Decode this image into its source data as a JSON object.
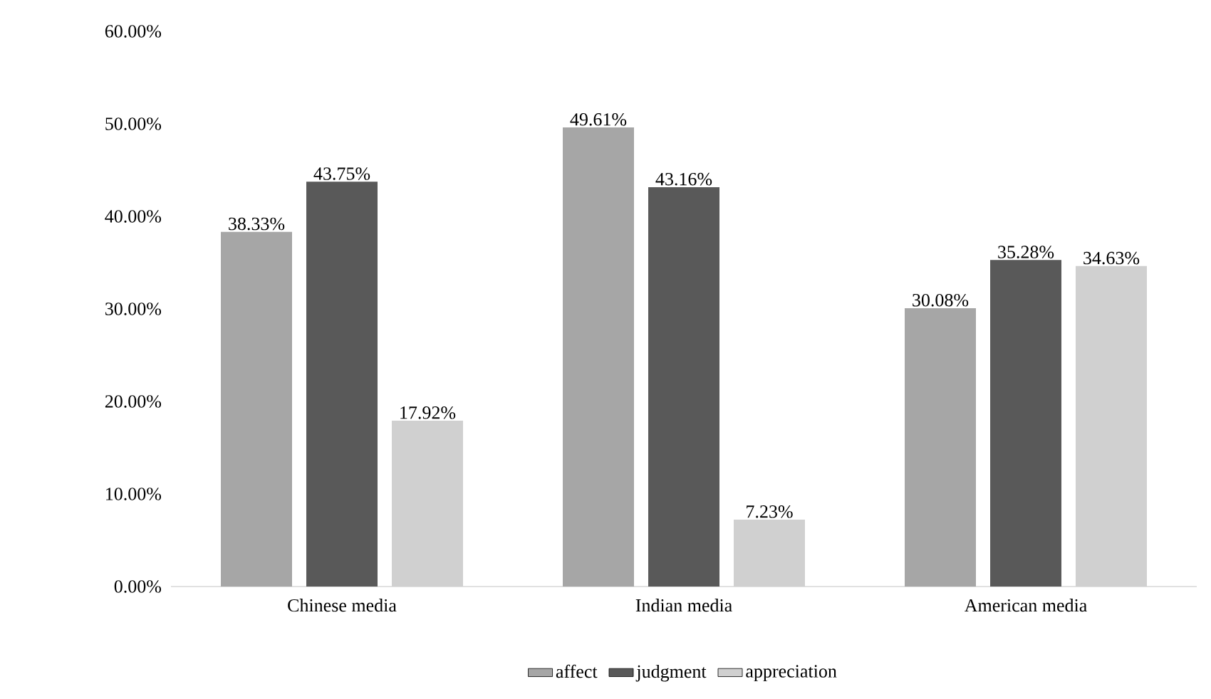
{
  "chart_data": {
    "type": "bar",
    "categories": [
      "Chinese media",
      "Indian media",
      "American media"
    ],
    "series": [
      {
        "name": "affect",
        "color": "#a6a6a6",
        "values": [
          38.33,
          49.61,
          30.08
        ],
        "value_labels": [
          "38.33%",
          "49.61%",
          "30.08%"
        ]
      },
      {
        "name": "judgment",
        "color": "#595959",
        "values": [
          43.75,
          43.16,
          35.28
        ],
        "value_labels": [
          "43.75%",
          "43.16%",
          "35.28%"
        ]
      },
      {
        "name": "appreciation",
        "color": "#d0d0d0",
        "values": [
          17.92,
          7.23,
          34.63
        ],
        "value_labels": [
          "17.92%",
          "7.23%",
          "34.63%"
        ]
      }
    ],
    "ylim": [
      0,
      60
    ],
    "yticks": [
      {
        "value": 0,
        "label": "0.00%"
      },
      {
        "value": 10,
        "label": "10.00%"
      },
      {
        "value": 20,
        "label": "20.00%"
      },
      {
        "value": 30,
        "label": "30.00%"
      },
      {
        "value": 40,
        "label": "40.00%"
      },
      {
        "value": 50,
        "label": "50.00%"
      },
      {
        "value": 60,
        "label": "60.00%"
      }
    ],
    "grid": false,
    "legend": "bottom"
  }
}
